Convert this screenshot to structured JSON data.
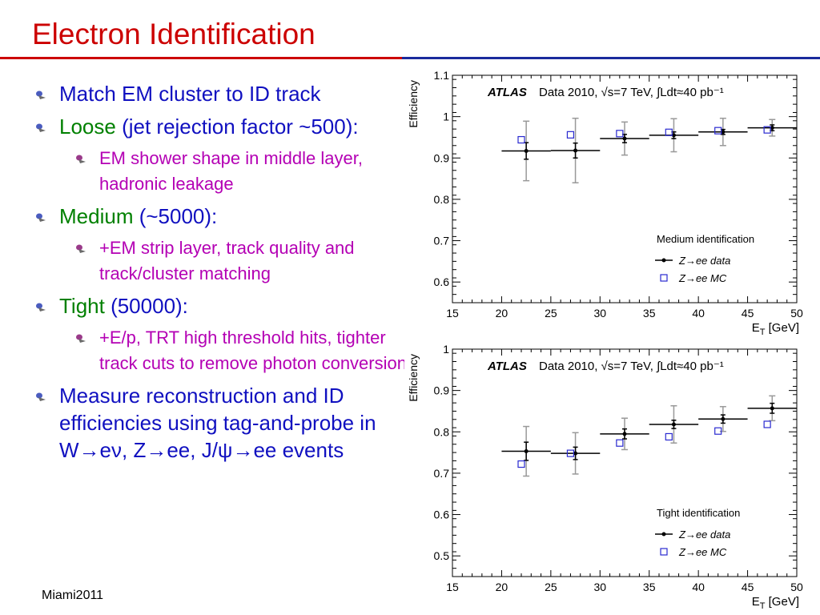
{
  "slide": {
    "title": "Electron Identification",
    "footer": "Miami2011",
    "bullets": [
      {
        "level": 1,
        "parts": [
          {
            "text": "Match EM cluster to ID track",
            "color": "blue"
          }
        ]
      },
      {
        "level": 1,
        "parts": [
          {
            "text": "Loose",
            "color": "green"
          },
          {
            "text": " (jet rejection factor ~500):",
            "color": "blue"
          }
        ]
      },
      {
        "level": 2,
        "parts": [
          {
            "text": "EM shower shape in middle layer, hadronic leakage",
            "color": "magenta"
          }
        ]
      },
      {
        "level": 1,
        "parts": [
          {
            "text": "Medium",
            "color": "green"
          },
          {
            "text": " (~5000):",
            "color": "blue"
          }
        ]
      },
      {
        "level": 2,
        "parts": [
          {
            "text": "+EM strip layer, track quality and track/cluster matching",
            "color": "magenta"
          }
        ]
      },
      {
        "level": 1,
        "parts": [
          {
            "text": "Tight",
            "color": "green"
          },
          {
            "text": " (50000):",
            "color": "blue"
          }
        ]
      },
      {
        "level": 2,
        "parts": [
          {
            "text": "+E/p, TRT high threshold hits, tighter track cuts to remove photon conversions",
            "color": "magenta"
          }
        ]
      },
      {
        "level": 1,
        "parts": [
          {
            "text": "Measure reconstruction and ID efficiencies using tag-and-probe in W→eν, Z→ee, J/ψ→ee events",
            "color": "blue"
          }
        ]
      }
    ]
  },
  "colors": {
    "title": "#cc0000",
    "rule_left": "#cc0000",
    "rule_right": "#1a2a9c",
    "blue": "#1010c0",
    "green": "#008000",
    "magenta": "#b400b4",
    "data_marker": "#000000",
    "mc_marker": "#2a2ad0",
    "sys_error": "#999999"
  },
  "chart_data": [
    {
      "type": "scatter",
      "experiment": "ATLAS",
      "annotation": "Data 2010,  √s=7 TeV,   ∫Ldt≈40 pb⁻¹",
      "ylabel": "Efficiency",
      "xlabel": "E_T [GeV]",
      "xlim": [
        15,
        50
      ],
      "ylim": [
        0.55,
        1.1
      ],
      "xticks": [
        15,
        20,
        25,
        30,
        35,
        40,
        45,
        50
      ],
      "yticks": [
        0.6,
        0.7,
        0.8,
        0.9,
        1,
        1.1
      ],
      "legend_title": "Medium identification",
      "legend_position": "bottom-right",
      "series": [
        {
          "name": "Z→ee data",
          "marker": "dot",
          "x": [
            22.5,
            27.5,
            32.5,
            37.5,
            42.5,
            47.5
          ],
          "xerr": [
            2.5,
            2.5,
            2.5,
            2.5,
            2.5,
            2.5
          ],
          "y": [
            0.917,
            0.918,
            0.947,
            0.955,
            0.963,
            0.973
          ],
          "yerr_stat": [
            0.02,
            0.018,
            0.01,
            0.008,
            0.006,
            0.007
          ],
          "yerr_total": [
            0.072,
            0.078,
            0.04,
            0.04,
            0.033,
            0.02
          ]
        },
        {
          "name": "Z→ee MC",
          "marker": "open-square",
          "x": [
            22.0,
            27.0,
            32.0,
            37.0,
            42.0,
            47.0
          ],
          "y": [
            0.944,
            0.956,
            0.959,
            0.962,
            0.966,
            0.968
          ]
        }
      ]
    },
    {
      "type": "scatter",
      "experiment": "ATLAS",
      "annotation": "Data 2010,  √s=7 TeV,   ∫Ldt≈40 pb⁻¹",
      "ylabel": "Efficiency",
      "xlabel": "E_T [GeV]",
      "xlim": [
        15,
        50
      ],
      "ylim": [
        0.45,
        1.0
      ],
      "xticks": [
        15,
        20,
        25,
        30,
        35,
        40,
        45,
        50
      ],
      "yticks": [
        0.5,
        0.6,
        0.7,
        0.8,
        0.9,
        1
      ],
      "legend_title": "Tight identification",
      "legend_position": "bottom-right",
      "series": [
        {
          "name": "Z→ee data",
          "marker": "dot",
          "x": [
            22.5,
            27.5,
            32.5,
            37.5,
            42.5,
            47.5
          ],
          "xerr": [
            2.5,
            2.5,
            2.5,
            2.5,
            2.5,
            2.5
          ],
          "y": [
            0.753,
            0.748,
            0.795,
            0.818,
            0.831,
            0.857
          ],
          "yerr_stat": [
            0.022,
            0.015,
            0.012,
            0.01,
            0.01,
            0.012
          ],
          "yerr_total": [
            0.06,
            0.05,
            0.038,
            0.045,
            0.03,
            0.03
          ]
        },
        {
          "name": "Z→ee MC",
          "marker": "open-square",
          "x": [
            22.0,
            27.0,
            32.0,
            37.0,
            42.0,
            47.0
          ],
          "y": [
            0.722,
            0.748,
            0.773,
            0.788,
            0.802,
            0.818
          ]
        }
      ]
    }
  ]
}
